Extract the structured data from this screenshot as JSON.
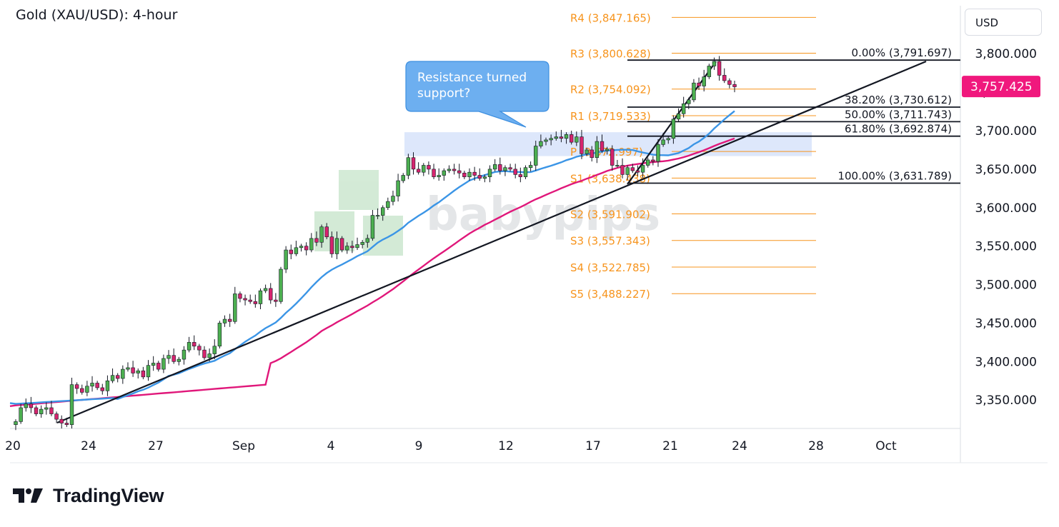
{
  "header": {
    "title": "Gold (XAU/USD): 4-hour",
    "currency_button": "USD"
  },
  "brand": {
    "name": "TradingView"
  },
  "watermark": {
    "text": "babypips"
  },
  "annotation": {
    "callout": [
      "Resistance turned",
      "support?"
    ]
  },
  "price_badge": {
    "value": "3,757.425",
    "color": "#f0187d"
  },
  "colors": {
    "bull": "#4caf50",
    "bear": "#d6246e",
    "pivot": "#f7941d",
    "ma_fast": "#3b95e6",
    "ma_slow": "#e0177a",
    "zone": "#dbe6fb"
  },
  "chart_data": {
    "type": "candlestick",
    "title": "Gold (XAU/USD): 4-hour",
    "ylim": [
      3310,
      3860
    ],
    "y_ticks": [
      "3,350.000",
      "3,400.000",
      "3,450.000",
      "3,500.000",
      "3,550.000",
      "3,600.000",
      "3,650.000",
      "3,700.000",
      "3,750.000",
      "3,800.000"
    ],
    "x_ticks": [
      "20",
      "24",
      "27",
      "Sep",
      "4",
      "9",
      "12",
      "17",
      "21",
      "24",
      "28",
      "Oct"
    ],
    "pivots": [
      {
        "label": "R4",
        "value": 3847.165,
        "text": "R4 (3,847.165)"
      },
      {
        "label": "R3",
        "value": 3800.628,
        "text": "R3 (3,800.628)"
      },
      {
        "label": "R2",
        "value": 3754.092,
        "text": "R2 (3,754.092)"
      },
      {
        "label": "R1",
        "value": 3719.533,
        "text": "R1 (3,719.533)"
      },
      {
        "label": "P",
        "value": 3672.997,
        "text": "P (3,672.997)"
      },
      {
        "label": "S1",
        "value": 3638.438,
        "text": "S1 (3,638.438)"
      },
      {
        "label": "S2",
        "value": 3591.902,
        "text": "S2 (3,591.902)"
      },
      {
        "label": "S3",
        "value": 3557.343,
        "text": "S3 (3,557.343)"
      },
      {
        "label": "S4",
        "value": 3522.785,
        "text": "S4 (3,522.785)"
      },
      {
        "label": "S5",
        "value": 3488.227,
        "text": "S5 (3,488.227)"
      }
    ],
    "fibonacci": [
      {
        "level": "0.00%",
        "value": 3791.697,
        "text": "0.00% (3,791.697)"
      },
      {
        "level": "38.20%",
        "value": 3730.612,
        "text": "38.20% (3,730.612)"
      },
      {
        "level": "50.00%",
        "value": 3711.743,
        "text": "50.00% (3,711.743)"
      },
      {
        "level": "61.80%",
        "value": 3692.874,
        "text": "61.80% (3,692.874)"
      },
      {
        "level": "100.00%",
        "value": 3631.789,
        "text": "100.00% (3,631.789)"
      }
    ],
    "last_price": 3757.425,
    "resistance_zone": {
      "from": 3667,
      "to": 3698
    },
    "closes": [
      3322,
      3340,
      3345,
      3340,
      3332,
      3338,
      3340,
      3332,
      3325,
      3320,
      3318,
      3370,
      3365,
      3360,
      3368,
      3372,
      3366,
      3362,
      3375,
      3382,
      3378,
      3390,
      3392,
      3385,
      3388,
      3380,
      3395,
      3398,
      3390,
      3404,
      3408,
      3400,
      3403,
      3415,
      3425,
      3420,
      3415,
      3405,
      3410,
      3420,
      3450,
      3455,
      3452,
      3488,
      3482,
      3480,
      3478,
      3475,
      3492,
      3495,
      3480,
      3478,
      3520,
      3545,
      3540,
      3548,
      3550,
      3545,
      3560,
      3555,
      3575,
      3562,
      3540,
      3560,
      3545,
      3550,
      3548,
      3552,
      3555,
      3560,
      3590,
      3590,
      3600,
      3608,
      3615,
      3635,
      3642,
      3665,
      3650,
      3646,
      3655,
      3650,
      3640,
      3642,
      3648,
      3650,
      3648,
      3645,
      3640,
      3646,
      3642,
      3638,
      3640,
      3650,
      3656,
      3648,
      3652,
      3650,
      3643,
      3640,
      3652,
      3655,
      3680,
      3686,
      3688,
      3690,
      3692,
      3690,
      3695,
      3685,
      3692,
      3670,
      3675,
      3665,
      3686,
      3674,
      3676,
      3655,
      3655,
      3643,
      3652,
      3648,
      3646,
      3655,
      3662,
      3660,
      3682,
      3688,
      3690,
      3715,
      3722,
      3735,
      3740,
      3762,
      3758,
      3770,
      3784,
      3790,
      3772,
      3765,
      3760,
      3757
    ]
  }
}
